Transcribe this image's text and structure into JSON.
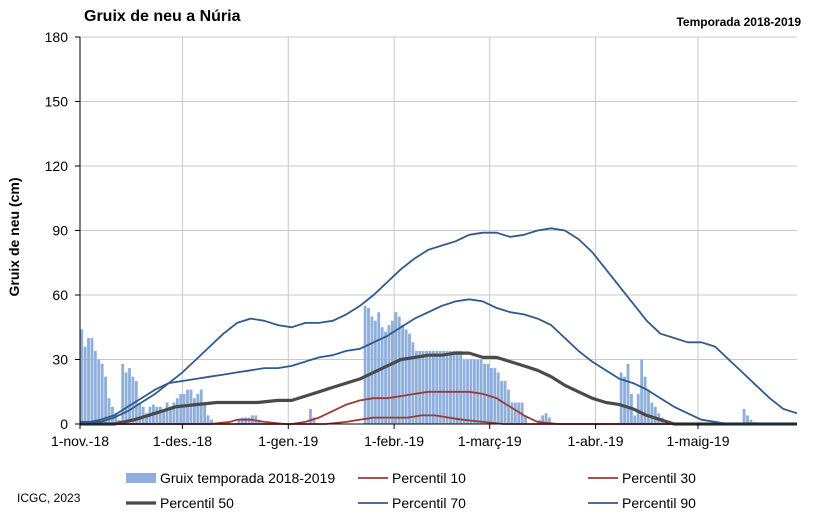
{
  "header": {
    "title": "Gruix de neu a Núria",
    "season": "Temporada 2018-2019"
  },
  "footer": {
    "credit": "ICGC, 2023"
  },
  "chart_data": {
    "type": "bar",
    "title": "Gruix de neu a Núria",
    "subtitle": "Temporada 2018-2019",
    "ylabel": "Gruix de neu (cm)",
    "xlabel": "",
    "ylim": [
      0,
      180
    ],
    "yticks": [
      0,
      30,
      60,
      90,
      120,
      150,
      180
    ],
    "xlim_days": [
      0,
      210
    ],
    "x_start": "2018-11-01",
    "xticks": [
      {
        "day": 0,
        "label": "1-nov.-18"
      },
      {
        "day": 30,
        "label": "1-des.-18"
      },
      {
        "day": 61,
        "label": "1-gen.-19"
      },
      {
        "day": 92,
        "label": "1-febr.-19"
      },
      {
        "day": 120,
        "label": "1-març-19"
      },
      {
        "day": 151,
        "label": "1-abr.-19"
      },
      {
        "day": 181,
        "label": "1-maig-19"
      }
    ],
    "grid": true,
    "legend_position": "bottom",
    "colors": {
      "bars": "#8eaedb",
      "p10": "#9b3a36",
      "p30": "#9b3a36",
      "p50": "#4a4a4a",
      "p70": "#2e5a8c",
      "p90": "#2e5a8c"
    },
    "bars": {
      "name": "Gruix temporada 2018-2019",
      "values": [
        44,
        36,
        40,
        40,
        34,
        30,
        28,
        22,
        12,
        8,
        5,
        2,
        0,
        0,
        0,
        0,
        0,
        0,
        0,
        0,
        0,
        0,
        0,
        0,
        0,
        0,
        0,
        0,
        0,
        0,
        0,
        0,
        0,
        0,
        0,
        0,
        0,
        0,
        0,
        0,
        0,
        0,
        0,
        0,
        0,
        0,
        0,
        0,
        0,
        0,
        0,
        0,
        0,
        0,
        0,
        0,
        0,
        0,
        0,
        0,
        0,
        0,
        0,
        0,
        0,
        0,
        0,
        0,
        0,
        0,
        0,
        0,
        0,
        0,
        0,
        0,
        0,
        0,
        0,
        0,
        0,
        0,
        0,
        0,
        0,
        0,
        0,
        0,
        0,
        0,
        0,
        0,
        0,
        0,
        0,
        0,
        0,
        0,
        0,
        0,
        0,
        0,
        0,
        0,
        0,
        0,
        0,
        0,
        0,
        0,
        0,
        0,
        0,
        0,
        0,
        0,
        0,
        0,
        0,
        0,
        0,
        0,
        0,
        0,
        0,
        0,
        0,
        0,
        0,
        0,
        0,
        0,
        0,
        0,
        0,
        0,
        0,
        0,
        0,
        0,
        0,
        0,
        0,
        0,
        0,
        0,
        0,
        0,
        0,
        0,
        0,
        0,
        0,
        0,
        0,
        0,
        0,
        0,
        0,
        0,
        0,
        0,
        0,
        0,
        0,
        0,
        0,
        0,
        0,
        0,
        0,
        0,
        0,
        0,
        0,
        0,
        0,
        0,
        0,
        0,
        0,
        0,
        0,
        0,
        0,
        0,
        0,
        0,
        0,
        0,
        0,
        0,
        0,
        0,
        0,
        0,
        0,
        0,
        0,
        0,
        0,
        0,
        0,
        0,
        0,
        0,
        0,
        0,
        0,
        0
      ],
      "segments": [
        {
          "start_day": 0,
          "values": [
            44,
            36,
            40,
            40,
            34,
            30,
            28,
            22,
            12,
            8,
            5,
            2
          ]
        },
        {
          "start_day": 12,
          "values": [
            28,
            24,
            26,
            22,
            20,
            10,
            8,
            5,
            8,
            9,
            8,
            8,
            6,
            10,
            8,
            10,
            12,
            14,
            14,
            16,
            16,
            12,
            14,
            16,
            10,
            4,
            2
          ]
        },
        {
          "start_day": 40,
          "values": [
            0,
            0,
            0,
            0,
            0,
            0,
            2,
            3,
            3,
            3,
            4,
            4,
            2
          ]
        },
        {
          "start_day": 67,
          "values": [
            7,
            3
          ]
        },
        {
          "start_day": 83,
          "values": [
            55,
            54,
            50,
            48,
            52,
            45,
            43,
            46,
            48,
            52,
            50,
            46,
            44,
            42,
            38,
            34,
            34,
            34,
            34,
            34,
            34,
            34,
            34,
            34,
            34,
            34,
            34,
            34,
            34,
            30,
            30,
            30,
            30,
            30,
            30,
            28,
            28,
            26,
            26,
            24,
            20,
            20,
            16,
            10,
            10,
            10,
            10,
            4
          ]
        },
        {
          "start_day": 134,
          "values": [
            2,
            4,
            5,
            3
          ]
        },
        {
          "start_day": 158,
          "values": [
            24,
            22,
            28,
            14,
            4,
            14,
            30,
            22,
            16,
            10,
            8,
            5,
            3
          ]
        },
        {
          "start_day": 182,
          "values": [
            0,
            0,
            0,
            0,
            0,
            0,
            0,
            0,
            0,
            0,
            0,
            0,
            0,
            0,
            0,
            0,
            0,
            0,
            0,
            0,
            0,
            0,
            0,
            0,
            0,
            0,
            0,
            0,
            0,
            0,
            0,
            0,
            0,
            0,
            0,
            0,
            0,
            0,
            0,
            0,
            0
          ]
        },
        {
          "start_day": 194,
          "values": [
            7,
            4,
            2,
            1
          ]
        }
      ]
    },
    "series": [
      {
        "name": "Percentil 10",
        "points": [
          [
            0,
            0
          ],
          [
            38,
            0
          ],
          [
            44,
            1
          ],
          [
            46,
            2
          ],
          [
            50,
            2
          ],
          [
            54,
            1
          ],
          [
            60,
            0
          ],
          [
            72,
            0
          ],
          [
            78,
            1
          ],
          [
            82,
            2
          ],
          [
            86,
            3
          ],
          [
            90,
            3
          ],
          [
            96,
            3
          ],
          [
            100,
            4
          ],
          [
            104,
            4
          ],
          [
            108,
            3
          ],
          [
            112,
            2
          ],
          [
            118,
            1
          ],
          [
            124,
            0
          ],
          [
            210,
            0
          ]
        ]
      },
      {
        "name": "Percentil 30",
        "points": [
          [
            0,
            0
          ],
          [
            62,
            0
          ],
          [
            66,
            1
          ],
          [
            70,
            3
          ],
          [
            74,
            6
          ],
          [
            78,
            9
          ],
          [
            82,
            11
          ],
          [
            86,
            12
          ],
          [
            90,
            12
          ],
          [
            94,
            13
          ],
          [
            98,
            14
          ],
          [
            102,
            15
          ],
          [
            106,
            15
          ],
          [
            110,
            15
          ],
          [
            114,
            15
          ],
          [
            118,
            14
          ],
          [
            122,
            12
          ],
          [
            126,
            8
          ],
          [
            130,
            4
          ],
          [
            134,
            1
          ],
          [
            140,
            0
          ],
          [
            210,
            0
          ]
        ]
      },
      {
        "name": "Percentil 50",
        "points": [
          [
            0,
            0
          ],
          [
            10,
            0
          ],
          [
            16,
            2
          ],
          [
            22,
            5
          ],
          [
            28,
            8
          ],
          [
            34,
            9
          ],
          [
            40,
            10
          ],
          [
            46,
            10
          ],
          [
            52,
            10
          ],
          [
            58,
            11
          ],
          [
            62,
            11
          ],
          [
            66,
            13
          ],
          [
            70,
            15
          ],
          [
            74,
            17
          ],
          [
            78,
            19
          ],
          [
            82,
            21
          ],
          [
            86,
            24
          ],
          [
            90,
            27
          ],
          [
            94,
            30
          ],
          [
            98,
            31
          ],
          [
            102,
            32
          ],
          [
            106,
            32
          ],
          [
            110,
            33
          ],
          [
            114,
            33
          ],
          [
            118,
            31
          ],
          [
            122,
            31
          ],
          [
            126,
            29
          ],
          [
            130,
            27
          ],
          [
            134,
            25
          ],
          [
            138,
            22
          ],
          [
            142,
            18
          ],
          [
            146,
            15
          ],
          [
            150,
            12
          ],
          [
            154,
            10
          ],
          [
            158,
            9
          ],
          [
            162,
            7
          ],
          [
            166,
            4
          ],
          [
            170,
            2
          ],
          [
            174,
            0
          ],
          [
            210,
            0
          ]
        ]
      },
      {
        "name": "Percentil 70",
        "points": [
          [
            0,
            0
          ],
          [
            6,
            2
          ],
          [
            10,
            4
          ],
          [
            14,
            8
          ],
          [
            18,
            12
          ],
          [
            22,
            16
          ],
          [
            26,
            19
          ],
          [
            30,
            20
          ],
          [
            34,
            21
          ],
          [
            38,
            22
          ],
          [
            42,
            23
          ],
          [
            46,
            24
          ],
          [
            50,
            25
          ],
          [
            54,
            26
          ],
          [
            58,
            26
          ],
          [
            62,
            27
          ],
          [
            66,
            29
          ],
          [
            70,
            31
          ],
          [
            74,
            32
          ],
          [
            78,
            34
          ],
          [
            82,
            35
          ],
          [
            86,
            38
          ],
          [
            90,
            41
          ],
          [
            94,
            45
          ],
          [
            98,
            49
          ],
          [
            102,
            52
          ],
          [
            106,
            55
          ],
          [
            110,
            57
          ],
          [
            114,
            58
          ],
          [
            118,
            57
          ],
          [
            122,
            54
          ],
          [
            126,
            52
          ],
          [
            130,
            51
          ],
          [
            134,
            49
          ],
          [
            138,
            46
          ],
          [
            142,
            40
          ],
          [
            146,
            34
          ],
          [
            150,
            29
          ],
          [
            154,
            25
          ],
          [
            158,
            21
          ],
          [
            162,
            19
          ],
          [
            166,
            16
          ],
          [
            170,
            12
          ],
          [
            174,
            8
          ],
          [
            178,
            5
          ],
          [
            182,
            2
          ],
          [
            186,
            1
          ],
          [
            190,
            0
          ],
          [
            210,
            0
          ]
        ]
      },
      {
        "name": "Percentil 90",
        "points": [
          [
            0,
            1
          ],
          [
            6,
            1
          ],
          [
            10,
            3
          ],
          [
            14,
            6
          ],
          [
            18,
            10
          ],
          [
            22,
            14
          ],
          [
            26,
            19
          ],
          [
            30,
            24
          ],
          [
            34,
            30
          ],
          [
            38,
            36
          ],
          [
            42,
            42
          ],
          [
            46,
            47
          ],
          [
            50,
            49
          ],
          [
            54,
            48
          ],
          [
            58,
            46
          ],
          [
            62,
            45
          ],
          [
            66,
            47
          ],
          [
            70,
            47
          ],
          [
            74,
            48
          ],
          [
            78,
            51
          ],
          [
            82,
            55
          ],
          [
            86,
            60
          ],
          [
            90,
            66
          ],
          [
            94,
            72
          ],
          [
            98,
            77
          ],
          [
            102,
            81
          ],
          [
            106,
            83
          ],
          [
            110,
            85
          ],
          [
            114,
            88
          ],
          [
            118,
            89
          ],
          [
            122,
            89
          ],
          [
            126,
            87
          ],
          [
            130,
            88
          ],
          [
            134,
            90
          ],
          [
            138,
            91
          ],
          [
            142,
            90
          ],
          [
            146,
            86
          ],
          [
            150,
            80
          ],
          [
            154,
            72
          ],
          [
            158,
            64
          ],
          [
            162,
            56
          ],
          [
            166,
            48
          ],
          [
            170,
            42
          ],
          [
            174,
            40
          ],
          [
            178,
            38
          ],
          [
            182,
            38
          ],
          [
            186,
            36
          ],
          [
            190,
            30
          ],
          [
            194,
            24
          ],
          [
            198,
            18
          ],
          [
            202,
            12
          ],
          [
            206,
            7
          ],
          [
            210,
            5
          ]
        ]
      }
    ],
    "legend": [
      {
        "label": "Gruix temporada 2018-2019",
        "kind": "bar",
        "color": "#8eaedb"
      },
      {
        "label": "Percentil 10",
        "kind": "line",
        "color": "#9b3a36"
      },
      {
        "label": "Percentil 30",
        "kind": "line",
        "color": "#9b3a36"
      },
      {
        "label": "Percentil 50",
        "kind": "line",
        "color": "#4a4a4a"
      },
      {
        "label": "Percentil 70",
        "kind": "line",
        "color": "#2e5a8c"
      },
      {
        "label": "Percentil 90",
        "kind": "line",
        "color": "#2e5a8c"
      }
    ]
  }
}
